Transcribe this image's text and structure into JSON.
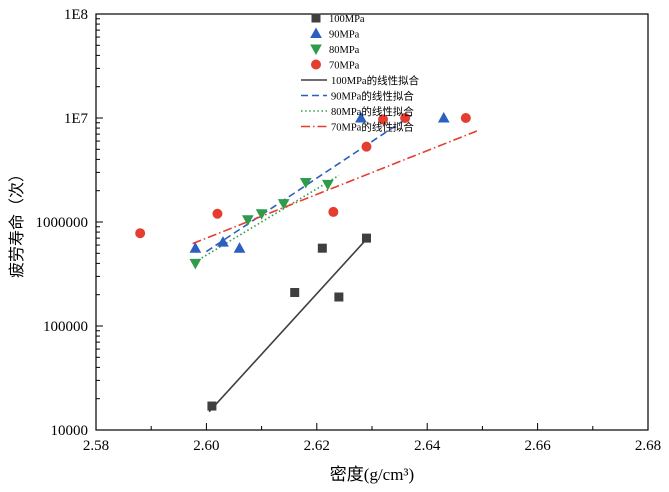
{
  "chart_data": {
    "type": "scatter",
    "title": "",
    "xlabel": "密度(g/cm³)",
    "ylabel": "疲劳寿命（次）",
    "xlim": [
      2.58,
      2.68
    ],
    "xticks": [
      2.58,
      2.6,
      2.62,
      2.64,
      2.66,
      2.68
    ],
    "xtick_labels": [
      "2.58",
      "2.60",
      "2.62",
      "2.64",
      "2.66",
      "2.68"
    ],
    "yscale": "log",
    "ylim": [
      10000,
      100000000
    ],
    "ytick_labels": [
      "10000",
      "100000",
      "1000000",
      "1E7",
      "1E8"
    ],
    "grid": false,
    "legend_position": "top-center-inside",
    "series": [
      {
        "name": "100MPa",
        "marker": "square",
        "color": "#3f3f3f",
        "points": [
          [
            2.601,
            17000
          ],
          [
            2.616,
            210000
          ],
          [
            2.621,
            560000
          ],
          [
            2.624,
            190000
          ],
          [
            2.629,
            700000
          ]
        ]
      },
      {
        "name": "90MPa",
        "marker": "triangle-up",
        "color": "#2b5fc0",
        "points": [
          [
            2.598,
            560000
          ],
          [
            2.603,
            640000
          ],
          [
            2.606,
            560000
          ],
          [
            2.628,
            10000000
          ],
          [
            2.643,
            10000000
          ]
        ]
      },
      {
        "name": "80MPa",
        "marker": "triangle-down",
        "color": "#2e9c4a",
        "points": [
          [
            2.598,
            400000
          ],
          [
            2.6075,
            1050000
          ],
          [
            2.61,
            1200000
          ],
          [
            2.614,
            1500000
          ],
          [
            2.618,
            2400000
          ],
          [
            2.622,
            2300000
          ]
        ]
      },
      {
        "name": "70MPa",
        "marker": "circle",
        "color": "#e53d30",
        "points": [
          [
            2.588,
            780000
          ],
          [
            2.602,
            1200000
          ],
          [
            2.623,
            1250000
          ],
          [
            2.629,
            5300000
          ],
          [
            2.632,
            9700000
          ],
          [
            2.636,
            10000000
          ],
          [
            2.647,
            10000000
          ]
        ]
      }
    ],
    "fits": [
      {
        "label": "100MPa的线性拟合",
        "color": "#3f3f3f",
        "style": "solid",
        "x": [
          2.6005,
          2.6295
        ],
        "y": [
          15000,
          730000
        ]
      },
      {
        "label": "90MPa的线性拟合",
        "color": "#2b5fc0",
        "style": "dashed",
        "x": [
          2.6,
          2.637
        ],
        "y": [
          520000,
          10500000
        ]
      },
      {
        "label": "80MPa的线性拟合",
        "color": "#2e9c4a",
        "style": "dotted",
        "x": [
          2.5985,
          2.624
        ],
        "y": [
          430000,
          2800000
        ]
      },
      {
        "label": "70MPa的线性拟合",
        "color": "#e53d30",
        "style": "dash-dot",
        "x": [
          2.5975,
          2.649
        ],
        "y": [
          620000,
          7500000
        ]
      }
    ]
  }
}
